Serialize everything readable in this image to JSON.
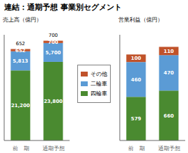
{
  "title": "連結：通期予想 事業別セグメント",
  "chart_data": [
    {
      "type": "bar",
      "stacked": true,
      "title": "売上高（億円）",
      "categories": [
        "前　期",
        "通期予想"
      ],
      "series": [
        {
          "name": "四輪車",
          "color": "#4a8a30",
          "values": [
            21200,
            23800
          ],
          "value_labels": [
            "21,200",
            "23,800"
          ]
        },
        {
          "name": "二輪車",
          "color": "#5b9bd5",
          "values": [
            5813,
            5700
          ],
          "value_labels": [
            "5,813",
            "5,700"
          ]
        },
        {
          "name": "その他",
          "color": "#c0522a",
          "values": [
            652,
            700
          ]
        }
      ],
      "ylim": [
        0,
        32000
      ],
      "data_labels": true,
      "tick_labels": "x",
      "grid": false,
      "legend": "right",
      "annotations": [
        {
          "category": "前　期",
          "text": "652"
        },
        {
          "category": "通期予想",
          "text": "700"
        }
      ]
    },
    {
      "type": "bar",
      "stacked": true,
      "title": "営業利益（億円）",
      "categories": [
        "前　期",
        "通期予想"
      ],
      "series": [
        {
          "name": "四輪車",
          "color": "#4a8a30",
          "values": [
            579,
            660
          ]
        },
        {
          "name": "二輪車",
          "color": "#5b9bd5",
          "values": [
            460,
            470
          ]
        },
        {
          "name": "その他",
          "color": "#c0522a",
          "values": [
            100,
            110
          ]
        }
      ],
      "ylim": [
        0,
        1400
      ],
      "data_labels": true,
      "tick_labels": "x",
      "grid": false
    }
  ]
}
